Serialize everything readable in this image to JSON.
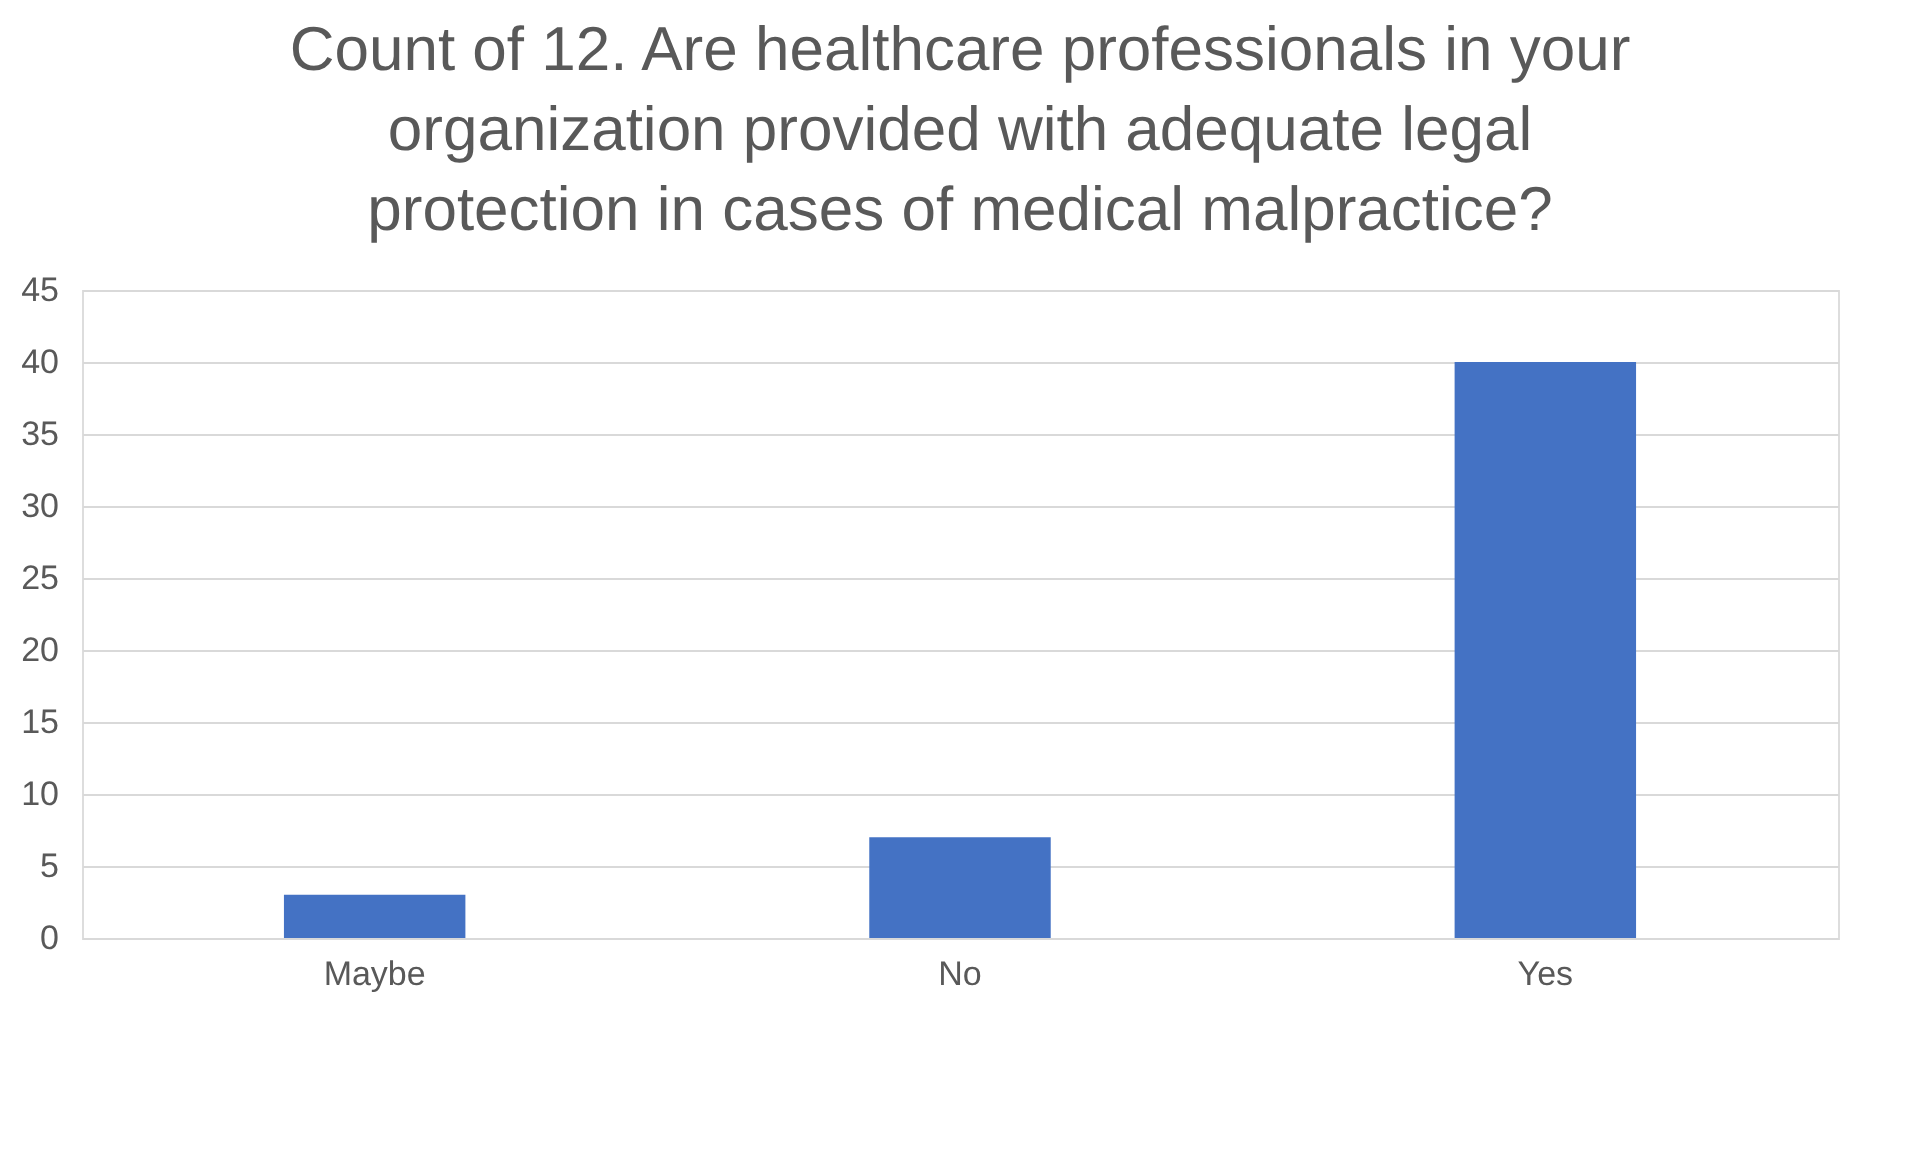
{
  "chart_data": {
    "type": "bar",
    "title": "Count of 12. Are healthcare professionals in your organization provided with adequate legal protection in cases of medical malpractice?",
    "categories": [
      "Maybe",
      "No",
      "Yes"
    ],
    "values": [
      3,
      7,
      40
    ],
    "color": "#4472c4",
    "ylim": [
      0,
      45
    ],
    "yticks": [
      0,
      5,
      10,
      15,
      20,
      25,
      30,
      35,
      40,
      45
    ],
    "grid": "y"
  }
}
